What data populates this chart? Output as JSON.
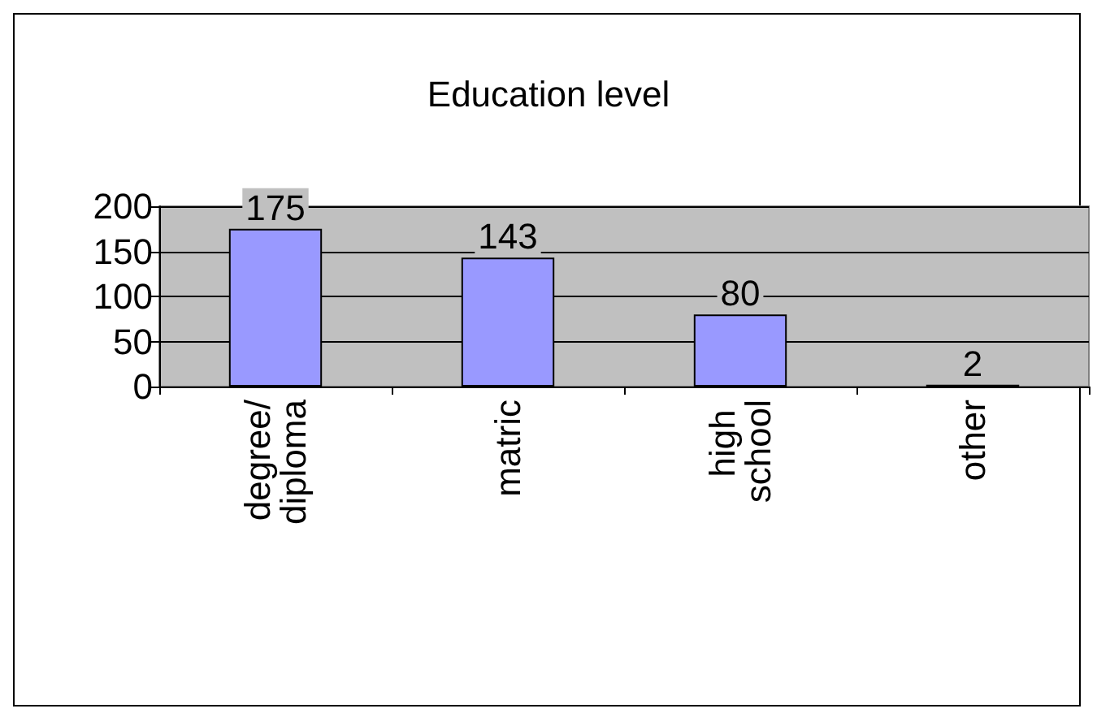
{
  "chart_data": {
    "type": "bar",
    "title": "Education level",
    "categories": [
      "degree/diploma",
      "matric",
      "high school",
      "other"
    ],
    "values": [
      175,
      143,
      80,
      2
    ],
    "color": "#9999ff",
    "ylim": [
      0,
      200
    ],
    "yticks": [
      0,
      50,
      100,
      150,
      200
    ],
    "grid": "y",
    "data_labels": true
  }
}
